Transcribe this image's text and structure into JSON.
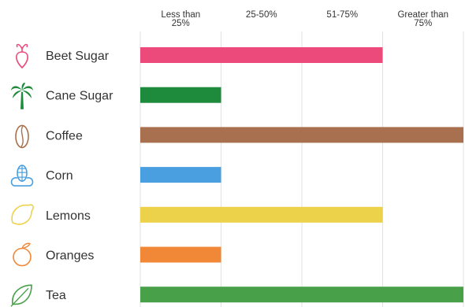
{
  "chart_data": {
    "type": "bar",
    "orientation": "horizontal",
    "scale_labels": [
      [
        "Less than",
        "25%"
      ],
      [
        "25-50%"
      ],
      [
        "51-75%"
      ],
      [
        "Greater than",
        "75%"
      ]
    ],
    "categories": [
      "Beet Sugar",
      "Cane Sugar",
      "Coffee",
      "Corn",
      "Lemons",
      "Oranges",
      "Tea"
    ],
    "values": [
      3,
      1,
      4,
      1,
      3,
      1,
      4
    ],
    "value_meaning": "highest bracket reached: 1 = Less than 25%, 2 = 25-50%, 3 = 51-75%, 4 = Greater than 75%",
    "colors": [
      "#ec4a7a",
      "#1e8a3c",
      "#a8704e",
      "#4a9fe0",
      "#ecd24a",
      "#f08838",
      "#48a048"
    ],
    "icons": [
      "beet-icon",
      "palm-tree-icon",
      "coffee-bean-icon",
      "corn-icon",
      "lemon-icon",
      "orange-icon",
      "tea-leaf-icon"
    ],
    "xlim": [
      0,
      4
    ],
    "grid": true,
    "legend": "none"
  }
}
